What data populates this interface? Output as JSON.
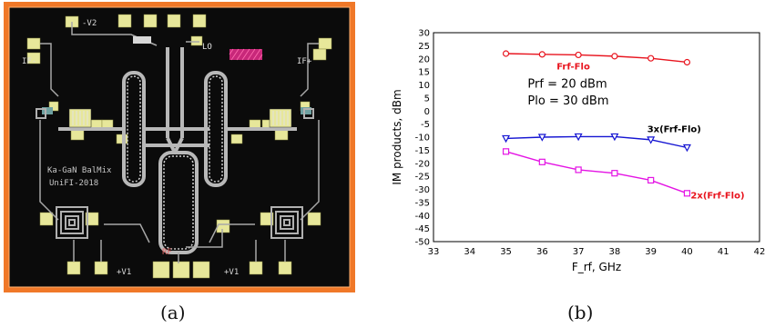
{
  "captions": {
    "a": "(a)",
    "b": "(b)"
  },
  "layout": {
    "labels": {
      "v2": "-V2",
      "lo": "LO",
      "if_left": "IF-",
      "if_right": "IF+",
      "title_line1": "Ka-GaN BalMix",
      "title_line2": "UniFI-2018",
      "rf": "RF",
      "v1_left": "+V1",
      "v1_right": "+V1"
    },
    "colors": {
      "frame": "#f07828",
      "substrate": "#0b0b0b",
      "metal": "#b8b8b8",
      "pad": "#e7e79a",
      "pink": "#c8287a"
    }
  },
  "chart_data": {
    "type": "line",
    "xlabel": "F_rf, GHz",
    "ylabel": "IM products, dBm",
    "xlim": [
      33,
      42
    ],
    "ylim": [
      -50,
      30
    ],
    "xticks": [
      33,
      34,
      35,
      36,
      37,
      38,
      39,
      40,
      41,
      42
    ],
    "yticks": [
      30,
      25,
      20,
      15,
      10,
      5,
      0,
      -5,
      -10,
      -15,
      -20,
      -25,
      -30,
      -35,
      -40,
      -45,
      -50
    ],
    "grid": true,
    "annotations": [
      "Prf = 20 dBm",
      "Plo = 30 dBm"
    ],
    "series": [
      {
        "name": "Frf-Flo",
        "color": "#e8141e",
        "marker": "circle",
        "x": [
          35,
          36,
          37,
          38,
          39,
          40
        ],
        "y": [
          22,
          21.7,
          21.5,
          21,
          20.2,
          18.7
        ]
      },
      {
        "name": "3x(Frf-Flo)",
        "color": "#1414d2",
        "marker": "triangle-down",
        "x": [
          35,
          36,
          37,
          38,
          39,
          40
        ],
        "y": [
          -10.5,
          -10,
          -9.8,
          -9.8,
          -11,
          -14
        ]
      },
      {
        "name": "2x(Frf-Flo)",
        "color": "#e414e4",
        "marker": "square",
        "x": [
          35,
          36,
          37,
          38,
          39,
          40
        ],
        "y": [
          -15.5,
          -19.5,
          -22.5,
          -23.8,
          -26.5,
          -31.5
        ]
      }
    ]
  }
}
